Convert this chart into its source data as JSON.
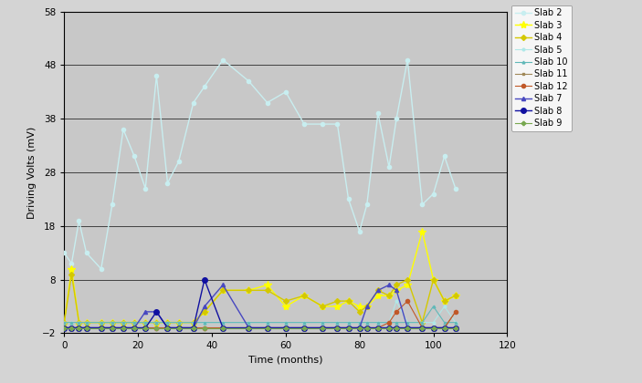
{
  "xlabel": "Time (months)",
  "ylabel": "Driving Volts (mV)",
  "xlim": [
    0,
    120
  ],
  "ylim": [
    -2,
    58
  ],
  "yticks": [
    -2,
    8,
    18,
    28,
    38,
    48,
    58
  ],
  "xticks": [
    0,
    20,
    40,
    60,
    80,
    100,
    120
  ],
  "plot_bg": "#c8c8c8",
  "fig_bg": "#d4d4d4",
  "series": {
    "Slab 2": {
      "color": "#c8eef0",
      "marker": "o",
      "markersize": 3,
      "linewidth": 1.0,
      "x": [
        0,
        2,
        4,
        6,
        10,
        13,
        16,
        19,
        22,
        25,
        28,
        31,
        35,
        38,
        43,
        50,
        55,
        60,
        65,
        70,
        74,
        77,
        80,
        82,
        85,
        88,
        90,
        93,
        97,
        100,
        103,
        106
      ],
      "y": [
        13,
        11,
        19,
        13,
        10,
        22,
        36,
        31,
        25,
        46,
        26,
        30,
        41,
        44,
        49,
        45,
        41,
        43,
        37,
        37,
        37,
        23,
        17,
        22,
        39,
        29,
        38,
        49,
        22,
        24,
        31,
        25
      ]
    },
    "Slab 3": {
      "color": "#ffff00",
      "marker": "*",
      "markersize": 6,
      "linewidth": 1.0,
      "x": [
        0,
        2,
        4,
        6,
        10,
        13,
        16,
        19,
        22,
        25,
        28,
        31,
        35,
        38,
        43,
        50,
        55,
        60,
        65,
        70,
        74,
        77,
        80,
        82,
        85,
        88,
        90,
        93,
        97,
        100,
        103,
        106
      ],
      "y": [
        0,
        10,
        0,
        0,
        0,
        0,
        0,
        0,
        0,
        0,
        0,
        0,
        0,
        2,
        6,
        6,
        7,
        3,
        5,
        3,
        3,
        4,
        3,
        3,
        5,
        5,
        6,
        7,
        17,
        8,
        4,
        5
      ]
    },
    "Slab 4": {
      "color": "#d4c800",
      "marker": "D",
      "markersize": 3,
      "linewidth": 1.0,
      "x": [
        0,
        2,
        4,
        6,
        10,
        13,
        16,
        19,
        22,
        25,
        28,
        31,
        35,
        38,
        43,
        50,
        55,
        60,
        65,
        70,
        74,
        77,
        80,
        82,
        85,
        88,
        90,
        93,
        97,
        100,
        103,
        106
      ],
      "y": [
        0,
        9,
        0,
        0,
        0,
        0,
        0,
        0,
        0,
        0,
        0,
        0,
        0,
        2,
        6,
        6,
        6,
        4,
        5,
        3,
        4,
        4,
        2,
        3,
        6,
        5,
        7,
        8,
        0,
        8,
        4,
        5
      ]
    },
    "Slab 5": {
      "color": "#b0e8e8",
      "marker": "o",
      "markersize": 2,
      "linewidth": 0.8,
      "x": [
        0,
        2,
        4,
        6,
        10,
        13,
        16,
        19,
        22,
        25,
        28,
        31,
        35,
        38,
        43,
        50,
        55,
        60,
        65,
        70,
        74,
        77,
        80,
        82,
        85,
        88,
        90,
        93,
        97,
        100,
        103,
        106
      ],
      "y": [
        0,
        0,
        0,
        0,
        0,
        0,
        0,
        0,
        0,
        0,
        0,
        0,
        0,
        0,
        0,
        0,
        0,
        0,
        0,
        0,
        0,
        0,
        0,
        0,
        0,
        0,
        4,
        0,
        0,
        0,
        3,
        0
      ]
    },
    "Slab 10": {
      "color": "#60b8b8",
      "marker": "^",
      "markersize": 2,
      "linewidth": 0.8,
      "x": [
        0,
        2,
        4,
        6,
        10,
        13,
        16,
        19,
        22,
        25,
        28,
        31,
        35,
        38,
        43,
        50,
        55,
        60,
        65,
        70,
        74,
        77,
        80,
        82,
        85,
        88,
        90,
        93,
        97,
        100,
        103,
        106
      ],
      "y": [
        0,
        0,
        0,
        0,
        0,
        0,
        0,
        0,
        0,
        0,
        0,
        0,
        0,
        0,
        0,
        0,
        0,
        0,
        0,
        0,
        0,
        0,
        0,
        0,
        0,
        0,
        0,
        0,
        0,
        3,
        0,
        0
      ]
    },
    "Slab 11": {
      "color": "#a08858",
      "marker": "s",
      "markersize": 2,
      "linewidth": 0.8,
      "x": [
        0,
        2,
        4,
        6,
        10,
        13,
        16,
        19,
        22,
        25,
        28,
        31,
        35,
        38,
        43,
        50,
        55,
        60,
        65,
        70,
        74,
        77,
        80,
        82,
        85,
        88,
        90,
        93,
        97,
        100,
        103,
        106
      ],
      "y": [
        -1,
        -1,
        -1,
        -1,
        -1,
        -1,
        -1,
        -1,
        -1,
        -1,
        -1,
        -1,
        -1,
        -1,
        -1,
        -1,
        -1,
        -1,
        -1,
        -1,
        -1,
        -1,
        -1,
        -1,
        -1,
        -1,
        -1,
        -1,
        -1,
        -1,
        -1,
        2
      ]
    },
    "Slab 12": {
      "color": "#c05828",
      "marker": "o",
      "markersize": 3,
      "linewidth": 0.8,
      "x": [
        0,
        2,
        4,
        6,
        10,
        13,
        16,
        19,
        22,
        25,
        28,
        31,
        35,
        38,
        43,
        50,
        55,
        60,
        65,
        70,
        74,
        77,
        80,
        82,
        85,
        88,
        90,
        93,
        97,
        100,
        103,
        106
      ],
      "y": [
        -1,
        -1,
        -1,
        -1,
        -1,
        -1,
        -1,
        -1,
        -1,
        -1,
        -1,
        -1,
        -1,
        -1,
        -1,
        -1,
        -1,
        -1,
        -1,
        -1,
        -1,
        -1,
        -1,
        -1,
        -1,
        0,
        2,
        4,
        -1,
        -1,
        -1,
        2
      ]
    },
    "Slab 7": {
      "color": "#4848c0",
      "marker": "^",
      "markersize": 3,
      "linewidth": 1.0,
      "x": [
        0,
        2,
        4,
        6,
        10,
        13,
        16,
        19,
        22,
        25,
        28,
        31,
        35,
        38,
        43,
        50,
        55,
        60,
        65,
        70,
        74,
        77,
        80,
        82,
        85,
        88,
        90,
        93,
        97,
        100,
        103,
        106
      ],
      "y": [
        -1,
        -1,
        -1,
        -1,
        -1,
        -1,
        -1,
        -1,
        2,
        2,
        -1,
        -1,
        -1,
        3,
        7,
        -1,
        -1,
        -1,
        -1,
        -1,
        -1,
        -1,
        -1,
        3,
        6,
        7,
        6,
        -1,
        -1,
        -1,
        -1,
        -1
      ]
    },
    "Slab 8": {
      "color": "#1010a0",
      "marker": "o",
      "markersize": 4,
      "linewidth": 1.0,
      "x": [
        0,
        2,
        4,
        6,
        10,
        13,
        16,
        19,
        22,
        25,
        28,
        31,
        35,
        38,
        43,
        50,
        55,
        60,
        65,
        70,
        74,
        77,
        80,
        82,
        85,
        88,
        90,
        93,
        97,
        100,
        103,
        106
      ],
      "y": [
        -1,
        -1,
        -1,
        -1,
        -1,
        -1,
        -1,
        -1,
        -1,
        2,
        -1,
        -1,
        -1,
        8,
        -1,
        -1,
        -1,
        -1,
        -1,
        -1,
        -1,
        -1,
        -1,
        -1,
        -1,
        -1,
        -1,
        -1,
        -1,
        -1,
        -1,
        -1
      ]
    },
    "Slab 9": {
      "color": "#78a850",
      "marker": "P",
      "markersize": 3,
      "linewidth": 0.8,
      "x": [
        0,
        2,
        4,
        6,
        10,
        13,
        16,
        19,
        22,
        25,
        28,
        31,
        35,
        38,
        43,
        50,
        55,
        60,
        65,
        70,
        74,
        77,
        80,
        82,
        85,
        88,
        90,
        93,
        97,
        100,
        103,
        106
      ],
      "y": [
        -1,
        -1,
        -1,
        -1,
        -1,
        -1,
        -1,
        -1,
        -1,
        -1,
        -1,
        -1,
        -1,
        -1,
        -1,
        -1,
        -1,
        -1,
        -1,
        -1,
        -1,
        -1,
        -1,
        -1,
        -1,
        -1,
        -1,
        -1,
        -1,
        -1,
        -1,
        -1
      ]
    }
  }
}
